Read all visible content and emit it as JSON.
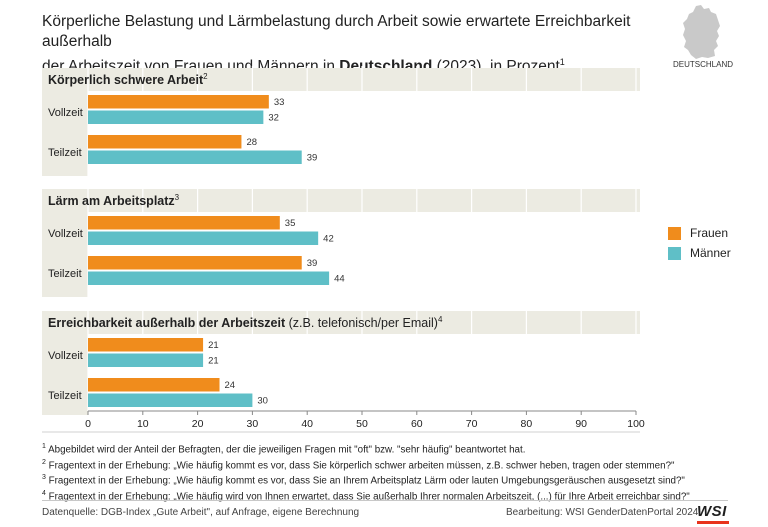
{
  "title": {
    "line1": "Körperliche Belastung und Lärmbelastung durch Arbeit sowie erwartete Erreichbarkeit außerhalb",
    "line2_pre": "der Arbeitszeit von Frauen und Männern in ",
    "line2_bold": "Deutschland",
    "line2_post": " (2023), in Prozent",
    "footnote_mark": "1"
  },
  "map_label": "DEUTSCHLAND",
  "colors": {
    "frauen": "#f08c1c",
    "maenner": "#5fbfc7",
    "panel": "#ecebe2"
  },
  "chart_data": {
    "type": "bar",
    "orientation": "horizontal",
    "unit": "Prozent",
    "xlim": [
      0,
      100
    ],
    "xticks": [
      0,
      10,
      20,
      30,
      40,
      50,
      60,
      70,
      80,
      90,
      100
    ],
    "series_names": [
      "Frauen",
      "Männer"
    ],
    "groups": [
      {
        "title": "Körperlich schwere Arbeit",
        "title_extra": "",
        "footnote": "2",
        "rows": [
          {
            "label": "Vollzeit",
            "values": [
              33,
              32
            ]
          },
          {
            "label": "Teilzeit",
            "values": [
              28,
              39
            ]
          }
        ]
      },
      {
        "title": "Lärm am Arbeitsplatz",
        "title_extra": "",
        "footnote": "3",
        "rows": [
          {
            "label": "Vollzeit",
            "values": [
              35,
              42
            ]
          },
          {
            "label": "Teilzeit",
            "values": [
              39,
              44
            ]
          }
        ]
      },
      {
        "title": "Erreichbarkeit außerhalb der Arbeitszeit",
        "title_extra": " (z.B. telefonisch/per Email)",
        "footnote": "4",
        "rows": [
          {
            "label": "Vollzeit",
            "values": [
              21,
              21
            ]
          },
          {
            "label": "Teilzeit",
            "values": [
              24,
              30
            ]
          }
        ]
      }
    ]
  },
  "legend": {
    "frauen": "Frauen",
    "maenner": "Männer"
  },
  "footnotes": [
    {
      "num": "1",
      "text": " Abgebildet wird der Anteil der Befragten, der die jeweiligen Fragen mit \"oft\" bzw. \"sehr häufig\" beantwortet hat."
    },
    {
      "num": "2",
      "text": " Fragentext in der Erhebung: „Wie häufig kommt es vor, dass Sie körperlich schwer arbeiten müssen, z.B. schwer heben, tragen oder stemmen?\""
    },
    {
      "num": "3",
      "text": " Fragentext in der Erhebung: „Wie häufig kommt es vor, dass Sie an Ihrem Arbeitsplatz Lärm oder lauten Umgebungsgeräuschen ausgesetzt sind?\""
    },
    {
      "num": "4",
      "text": " Fragentext in der Erhebung: „Wie häufig wird von Ihnen erwartet, dass Sie außerhalb Ihrer normalen Arbeitszeit, (...) für Ihre Arbeit erreichbar sind?\""
    }
  ],
  "source": "Datenquelle: DGB-Index „Gute Arbeit\", auf Anfrage, eigene Berechnung",
  "credit": "Bearbeitung: WSI GenderDatenPortal 2024",
  "logo": "WSI"
}
